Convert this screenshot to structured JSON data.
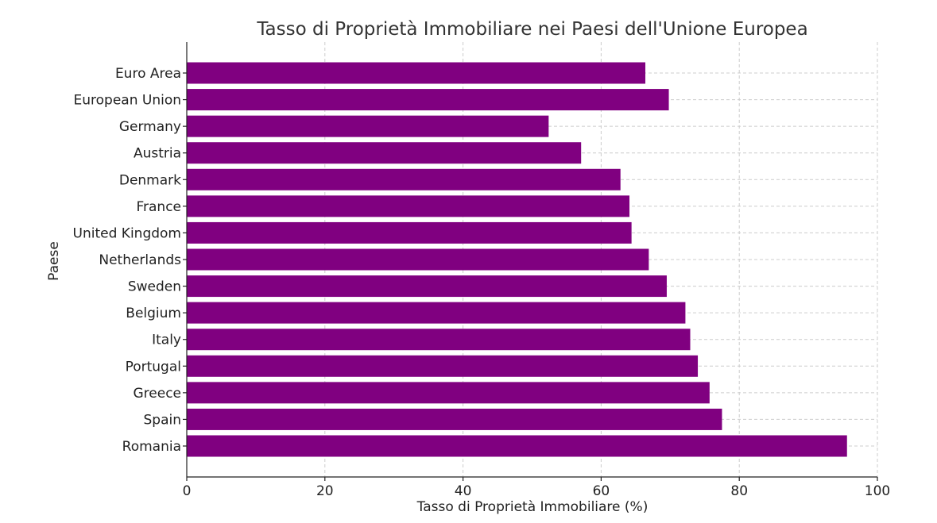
{
  "chart_data": {
    "type": "bar",
    "orientation": "horizontal",
    "title": "Tasso di Proprietà Immobiliare nei Paesi dell'Unione Europea",
    "xlabel": "Tasso di Proprietà Immobiliare (%)",
    "ylabel": "Paese",
    "xlim": [
      0,
      100
    ],
    "xticks": [
      0,
      20,
      40,
      60,
      80,
      100
    ],
    "grid": true,
    "bar_color": "#800080",
    "categories": [
      "Euro Area",
      "European Union",
      "Germany",
      "Austria",
      "Denmark",
      "France",
      "United Kingdom",
      "Netherlands",
      "Sweden",
      "Belgium",
      "Italy",
      "Portugal",
      "Greece",
      "Spain",
      "Romania"
    ],
    "values": [
      66.4,
      69.8,
      52.4,
      57.1,
      62.8,
      64.1,
      64.4,
      66.9,
      69.5,
      72.2,
      72.9,
      74.0,
      75.7,
      77.5,
      95.6
    ]
  }
}
